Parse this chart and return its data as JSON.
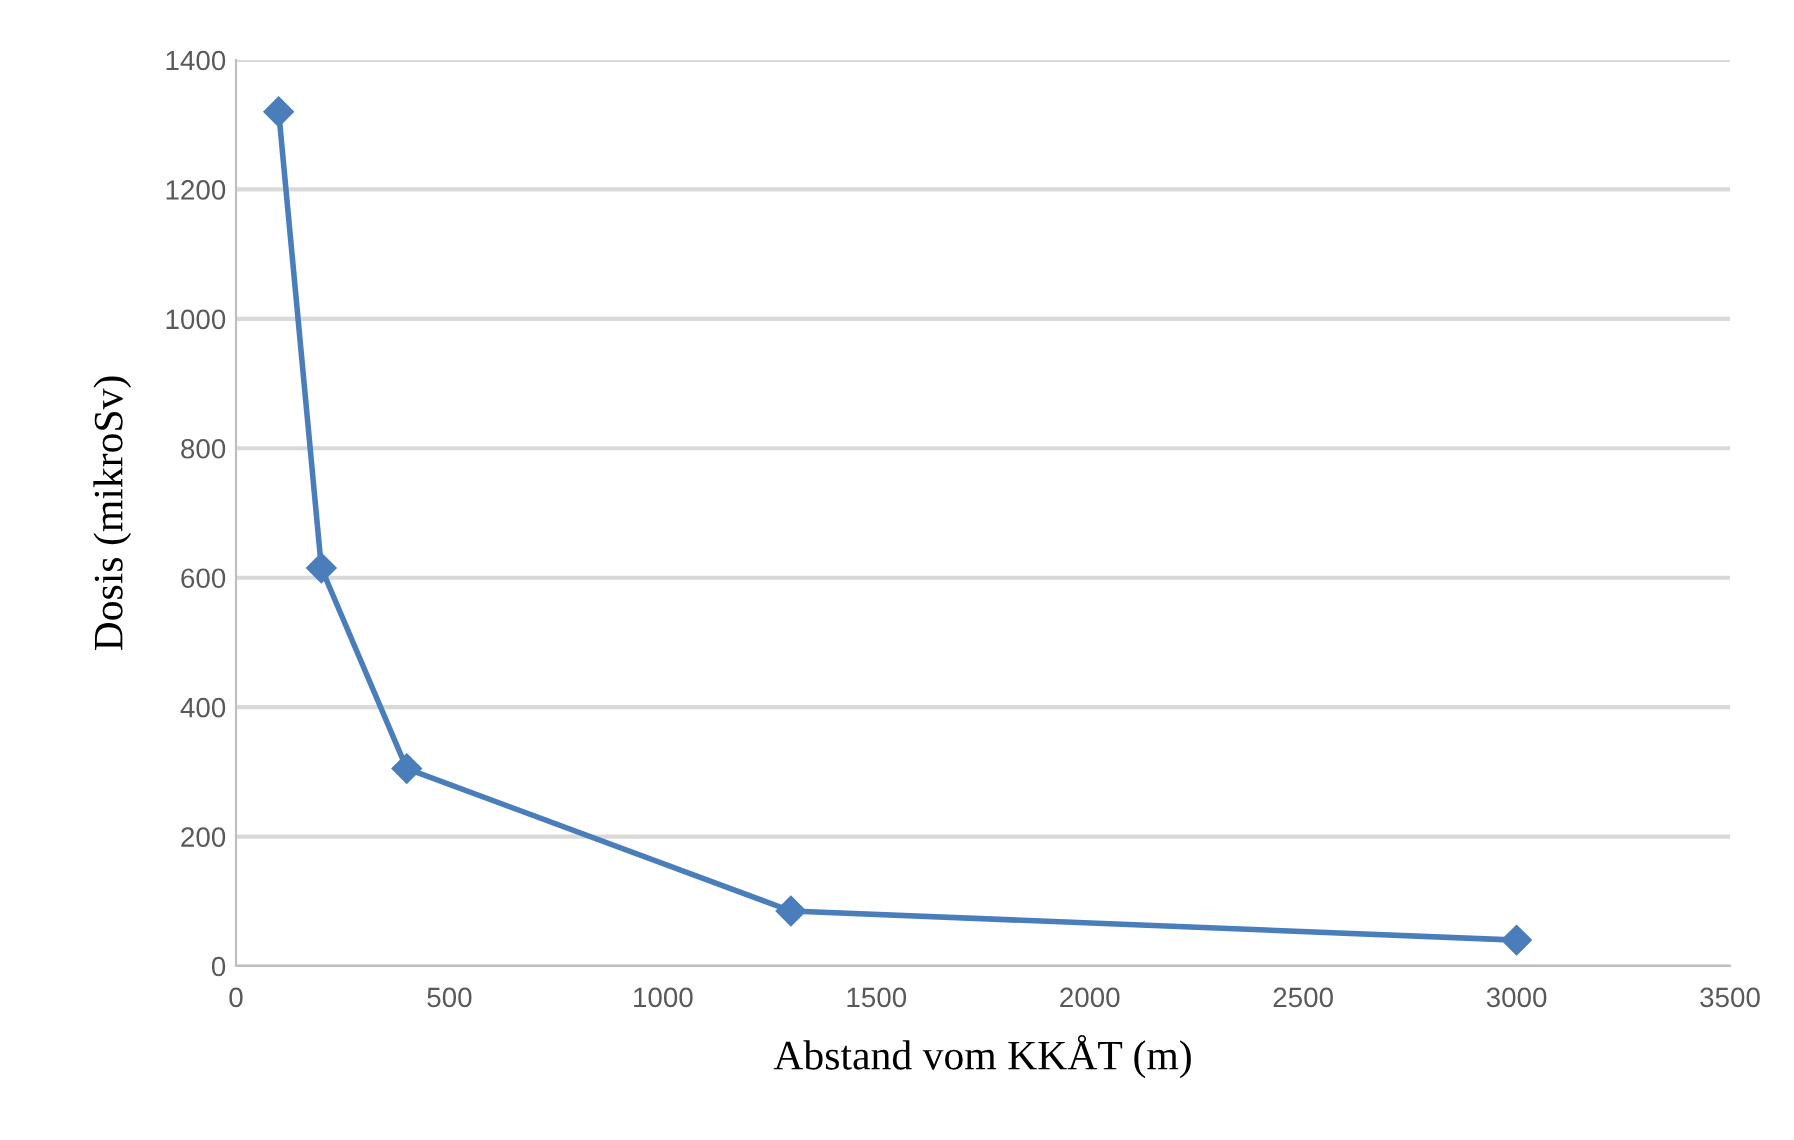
{
  "chart_data": {
    "type": "line",
    "xlabel": "Abstand vom KKÅT (m)",
    "ylabel": "Dosis (mikroSv)",
    "x": [
      100,
      200,
      400,
      1300,
      3000
    ],
    "series": [
      {
        "color": "#4a7ebb",
        "values": [
          1320,
          615,
          305,
          85,
          40
        ]
      }
    ],
    "xlim": [
      0,
      3500
    ],
    "xticks": [
      0,
      500,
      1000,
      1500,
      2000,
      2500,
      3000,
      3500
    ],
    "ylim": [
      0,
      1400
    ],
    "yticks": [
      0,
      200,
      400,
      600,
      800,
      1000,
      1200,
      1400
    ],
    "grid": "y",
    "marker": "diamond",
    "line_style": "solid"
  }
}
